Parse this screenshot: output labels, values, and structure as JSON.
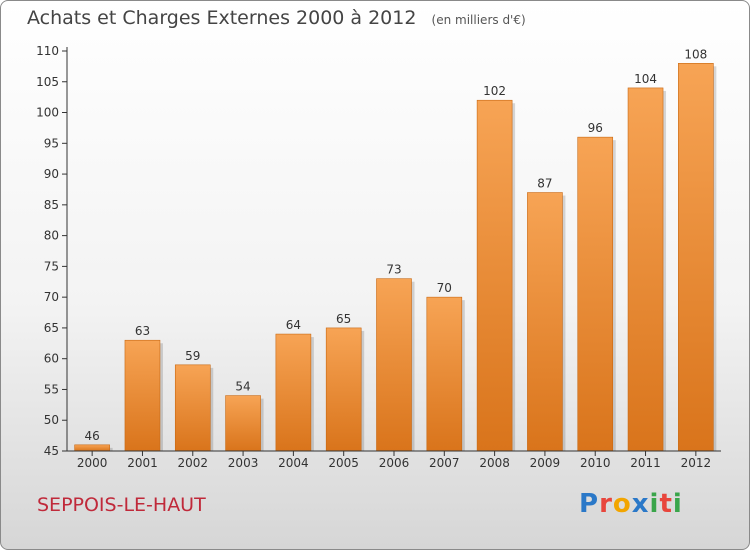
{
  "header": {
    "title": "Achats et Charges Externes 2000 à 2012",
    "subtitle": "(en milliers d'€)"
  },
  "footer": {
    "town": "SEPPOIS-LE-HAUT",
    "logo": "Proxiti",
    "logo_letter_colors": [
      "#2a78c8",
      "#e8453c",
      "#f2a500",
      "#2a78c8",
      "#3aa54a",
      "#e8453c",
      "#3aa54a"
    ]
  },
  "chart_data": {
    "type": "bar",
    "title": "Achats et Charges Externes 2000 à 2012",
    "subtitle": "(en milliers d'€)",
    "categories": [
      "2000",
      "2001",
      "2002",
      "2003",
      "2004",
      "2005",
      "2006",
      "2007",
      "2008",
      "2009",
      "2010",
      "2011",
      "2012"
    ],
    "values": [
      46,
      63,
      59,
      54,
      64,
      65,
      73,
      70,
      102,
      87,
      96,
      104,
      108
    ],
    "ylim": [
      45,
      110
    ],
    "yticks": [
      45,
      50,
      55,
      60,
      65,
      70,
      75,
      80,
      85,
      90,
      95,
      100,
      105,
      110
    ],
    "grid": false,
    "bar_color": "#f0953c"
  }
}
